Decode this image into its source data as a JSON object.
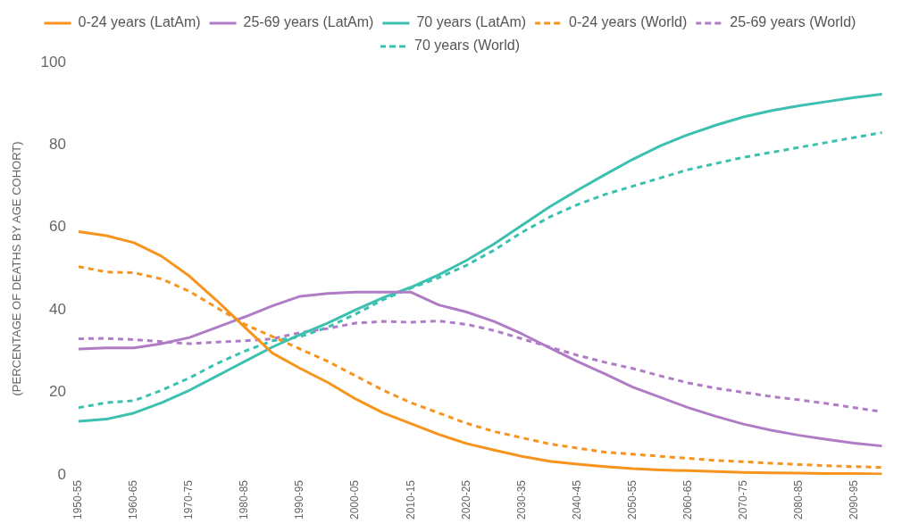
{
  "chart_data": {
    "type": "line",
    "ylabel": "(PERCENTAGE OF DEATHS BY AGE COHORT)",
    "categories": [
      "1950-55",
      null,
      "1960-65",
      null,
      "1970-75",
      null,
      "1980-85",
      null,
      "1990-95",
      null,
      "2000-05",
      null,
      "2010-15",
      null,
      "2020-25",
      null,
      "2030-35",
      null,
      "2040-45",
      null,
      "2050-55",
      null,
      "2060-65",
      null,
      "2070-75",
      null,
      "2080-85",
      null,
      "2090-95",
      null
    ],
    "ylim": [
      0,
      100
    ],
    "yticks": [
      0,
      20,
      40,
      60,
      80,
      100
    ],
    "grid": false,
    "legend": "top",
    "marker": "none",
    "series": [
      {
        "name": "0-24 years (LatAm)",
        "color": "#f7941d",
        "line_style": "solid",
        "values": [
          59,
          58,
          56.3,
          53,
          48.2,
          42.2,
          35.8,
          29.5,
          25.8,
          22.4,
          18.4,
          15,
          12.4,
          9.8,
          7.6,
          6,
          4.5,
          3.3,
          2.6,
          2,
          1.5,
          1.2,
          1,
          0.8,
          0.6,
          0.5,
          0.4,
          0.3,
          0.3,
          0.2
        ]
      },
      {
        "name": "25-69 years (LatAm)",
        "color": "#b07cc6",
        "line_style": "solid",
        "values": [
          30.5,
          30.8,
          30.8,
          31.8,
          33.3,
          35.8,
          38.3,
          41,
          43.3,
          44,
          44.3,
          44.3,
          44.3,
          41.2,
          39.5,
          37.2,
          34.2,
          30.8,
          27.5,
          24.5,
          21.3,
          18.8,
          16.3,
          14.2,
          12.3,
          10.8,
          9.6,
          8.6,
          7.7,
          7
        ]
      },
      {
        "name": "70 years (LatAm)",
        "color": "#3cc0b0",
        "line_style": "solid",
        "values": [
          13,
          13.5,
          15,
          17.5,
          20.5,
          24,
          27.5,
          31,
          34,
          36.8,
          40,
          43,
          45.5,
          48.5,
          52,
          56,
          60.5,
          65,
          69,
          72.8,
          76.5,
          79.8,
          82.5,
          84.8,
          86.8,
          88.3,
          89.5,
          90.5,
          91.5,
          92.3
        ]
      },
      {
        "name": "0-24 years (World)",
        "color": "#f7941d",
        "line_style": "dashed",
        "values": [
          50.5,
          49.2,
          49,
          47.5,
          44.5,
          40.5,
          36.5,
          33.5,
          30.5,
          27.5,
          24,
          20.5,
          17.5,
          15,
          12.5,
          10.5,
          9,
          7.5,
          6.5,
          5.5,
          5,
          4.5,
          4,
          3.5,
          3.2,
          2.8,
          2.5,
          2.2,
          2,
          1.8
        ]
      },
      {
        "name": "25-69 years (World)",
        "color": "#b07cc6",
        "line_style": "dashed",
        "values": [
          33,
          33.1,
          32.8,
          32.3,
          31.8,
          32.2,
          32.5,
          33,
          34.5,
          35.5,
          36.8,
          37.2,
          37,
          37.3,
          36.5,
          35,
          33,
          31,
          29,
          27.3,
          25.8,
          24,
          22.3,
          21,
          20,
          19,
          18.2,
          17.3,
          16.3,
          15.3
        ]
      },
      {
        "name": "70 years (World)",
        "color": "#3cc0b0",
        "line_style": "dashed",
        "values": [
          16.3,
          17.5,
          18,
          20.5,
          23.5,
          27,
          30,
          32.5,
          33.5,
          35.8,
          39,
          42.5,
          45.3,
          47.8,
          50.8,
          54.5,
          58.8,
          62.5,
          65.5,
          68,
          70,
          72,
          74,
          75.5,
          77,
          78.2,
          79.4,
          80.6,
          81.8,
          83
        ]
      }
    ]
  }
}
